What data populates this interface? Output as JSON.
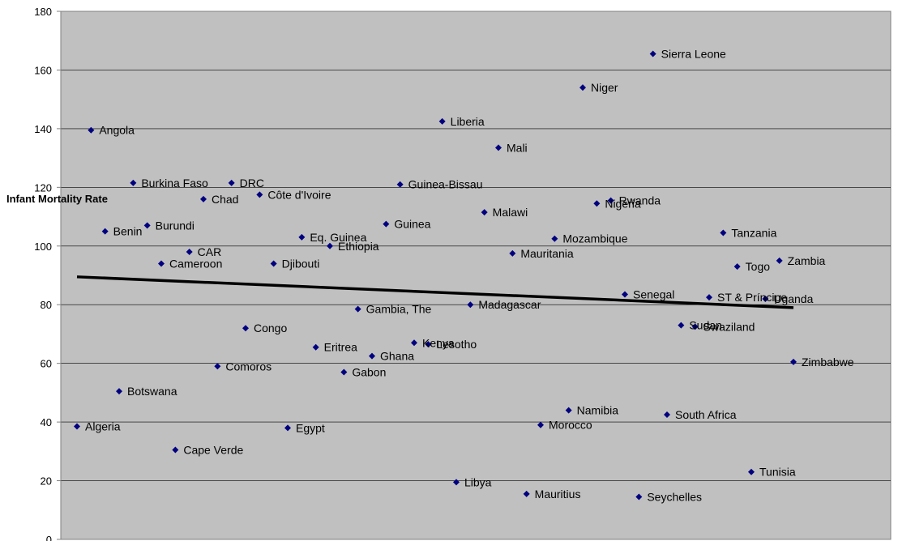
{
  "chart_data": {
    "type": "scatter",
    "ylabel": "Infant Mortality Rate",
    "ylim": [
      0,
      180
    ],
    "yticks": [
      0,
      20,
      40,
      60,
      80,
      100,
      120,
      140,
      160,
      180
    ],
    "grid": true,
    "legend": "none",
    "colors": {
      "plot_bg": "#c0c0c0",
      "marker": "#000080",
      "gridline": "#000000",
      "trendline": "#000000"
    },
    "points": [
      {
        "label": "Algeria",
        "x": 1,
        "y": 38.5
      },
      {
        "label": "Angola",
        "x": 2,
        "y": 139.5
      },
      {
        "label": "Benin",
        "x": 3,
        "y": 105
      },
      {
        "label": "Botswana",
        "x": 4,
        "y": 50.5
      },
      {
        "label": "Burkina Faso",
        "x": 5,
        "y": 121.5
      },
      {
        "label": "Burundi",
        "x": 6,
        "y": 107
      },
      {
        "label": "Cameroon",
        "x": 7,
        "y": 94
      },
      {
        "label": "Cape Verde",
        "x": 8,
        "y": 30.5
      },
      {
        "label": "CAR",
        "x": 9,
        "y": 98
      },
      {
        "label": "Chad",
        "x": 10,
        "y": 116
      },
      {
        "label": "Comoros",
        "x": 11,
        "y": 59
      },
      {
        "label": "DRC",
        "x": 12,
        "y": 121.5
      },
      {
        "label": "Congo",
        "x": 13,
        "y": 72
      },
      {
        "label": "Côte d'Ivoire",
        "x": 14,
        "y": 117.5
      },
      {
        "label": "Djibouti",
        "x": 15,
        "y": 94
      },
      {
        "label": "Egypt",
        "x": 16,
        "y": 38
      },
      {
        "label": "Eq. Guinea",
        "x": 17,
        "y": 103
      },
      {
        "label": "Eritrea",
        "x": 18,
        "y": 65.5
      },
      {
        "label": "Ethiopia",
        "x": 19,
        "y": 100
      },
      {
        "label": "Gabon",
        "x": 20,
        "y": 57
      },
      {
        "label": "Gambia, The",
        "x": 21,
        "y": 78.5
      },
      {
        "label": "Ghana",
        "x": 22,
        "y": 62.5
      },
      {
        "label": "Guinea",
        "x": 23,
        "y": 107.5
      },
      {
        "label": "Guinea-Bissau",
        "x": 24,
        "y": 121
      },
      {
        "label": "Kenya",
        "x": 25,
        "y": 67
      },
      {
        "label": "Lesotho",
        "x": 26,
        "y": 66.5
      },
      {
        "label": "Liberia",
        "x": 27,
        "y": 142.5
      },
      {
        "label": "Libya",
        "x": 28,
        "y": 19.5
      },
      {
        "label": "Madagascar",
        "x": 29,
        "y": 80
      },
      {
        "label": "Malawi",
        "x": 30,
        "y": 111.5
      },
      {
        "label": "Mali",
        "x": 31,
        "y": 133.5
      },
      {
        "label": "Mauritania",
        "x": 32,
        "y": 97.5
      },
      {
        "label": "Mauritius",
        "x": 33,
        "y": 15.5
      },
      {
        "label": "Morocco",
        "x": 34,
        "y": 39
      },
      {
        "label": "Mozambique",
        "x": 35,
        "y": 102.5
      },
      {
        "label": "Namibia",
        "x": 36,
        "y": 44
      },
      {
        "label": "Niger",
        "x": 37,
        "y": 154
      },
      {
        "label": "Nigeria",
        "x": 38,
        "y": 114.5
      },
      {
        "label": "Rwanda",
        "x": 39,
        "y": 115.5
      },
      {
        "label": "Senegal",
        "x": 40,
        "y": 83.5
      },
      {
        "label": "Seychelles",
        "x": 41,
        "y": 14.5
      },
      {
        "label": "Sierra Leone",
        "x": 42,
        "y": 165.5
      },
      {
        "label": "South Africa",
        "x": 43,
        "y": 42.5
      },
      {
        "label": "Sudan",
        "x": 44,
        "y": 73
      },
      {
        "label": "Swaziland",
        "x": 45,
        "y": 72.5
      },
      {
        "label": "ST & Príncipe",
        "x": 46,
        "y": 82.5
      },
      {
        "label": "Tanzania",
        "x": 47,
        "y": 104.5
      },
      {
        "label": "Togo",
        "x": 48,
        "y": 93
      },
      {
        "label": "Tunisia",
        "x": 49,
        "y": 23
      },
      {
        "label": "Uganda",
        "x": 50,
        "y": 82
      },
      {
        "label": "Zambia",
        "x": 51,
        "y": 95
      },
      {
        "label": "Zimbabwe",
        "x": 52,
        "y": 60.5
      }
    ],
    "trendline": {
      "x": [
        1,
        52
      ],
      "y": [
        89.5,
        79
      ]
    }
  }
}
